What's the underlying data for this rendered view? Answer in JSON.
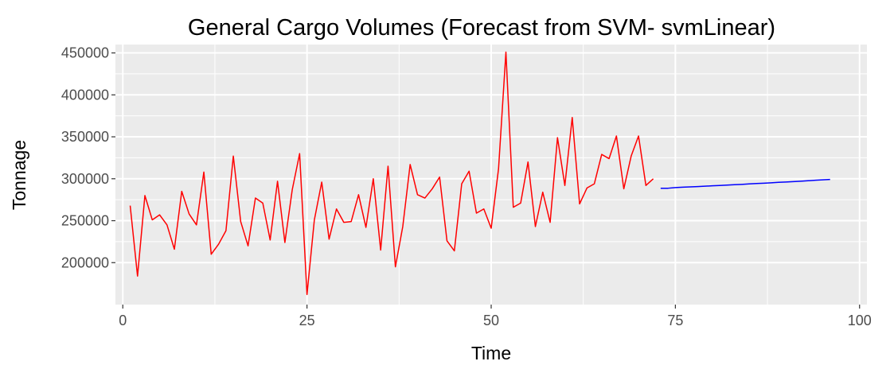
{
  "chart_data": {
    "type": "line",
    "title": "General Cargo Volumes (Forecast from SVM- svmLinear)",
    "xlabel": "Time",
    "ylabel": "Tonnage",
    "xlim": [
      -1,
      101
    ],
    "ylim": [
      150000,
      460000
    ],
    "x_ticks": [
      0,
      25,
      50,
      75,
      100
    ],
    "x_tick_labels": [
      "0",
      "25",
      "50",
      "75",
      "100"
    ],
    "y_ticks": [
      200000,
      250000,
      300000,
      350000,
      400000,
      450000
    ],
    "y_tick_labels": [
      "200000",
      "250000",
      "300000",
      "350000",
      "400000",
      "450000"
    ],
    "grid": true,
    "legend": "none",
    "series": [
      {
        "color": "#ff0000",
        "x": [
          1,
          2,
          3,
          4,
          5,
          6,
          7,
          8,
          9,
          10,
          11,
          12,
          13,
          14,
          15,
          16,
          17,
          18,
          19,
          20,
          21,
          22,
          23,
          24,
          25,
          26,
          27,
          28,
          29,
          30,
          31,
          32,
          33,
          34,
          35,
          36,
          37,
          38,
          39,
          40,
          41,
          42,
          43,
          44,
          45,
          46,
          47,
          48,
          49,
          50,
          51,
          52,
          53,
          54,
          55,
          56,
          57,
          58,
          59,
          60,
          61,
          62,
          63,
          64,
          65,
          66,
          67,
          68,
          69,
          70,
          71,
          72
        ],
        "y": [
          268000,
          184000,
          280000,
          251000,
          257000,
          245000,
          216000,
          285000,
          258000,
          245000,
          308000,
          210000,
          222000,
          238000,
          327000,
          249000,
          220000,
          277000,
          271000,
          227000,
          297000,
          224000,
          287000,
          330000,
          162000,
          251000,
          296000,
          228000,
          264000,
          248000,
          249000,
          281000,
          242000,
          300000,
          215000,
          315000,
          195000,
          243000,
          317000,
          281000,
          277000,
          288000,
          302000,
          226000,
          214000,
          294000,
          309000,
          259000,
          264000,
          241000,
          312000,
          451000,
          266000,
          271000,
          320000,
          243000,
          284000,
          248000,
          349000,
          292000,
          373000,
          270000,
          289000,
          294000,
          329000,
          324000,
          351000,
          288000,
          327000,
          351000,
          292000,
          300000
        ]
      },
      {
        "color": "#0000ff",
        "x": [
          73,
          74,
          75,
          76,
          77,
          78,
          79,
          80,
          81,
          82,
          83,
          84,
          85,
          86,
          87,
          88,
          89,
          90,
          91,
          92,
          93,
          94,
          95,
          96
        ],
        "y": [
          288600,
          288700,
          289500,
          289900,
          290300,
          290700,
          291100,
          291600,
          292000,
          292400,
          292900,
          293300,
          293800,
          294300,
          294700,
          295200,
          295700,
          296100,
          296600,
          297100,
          297600,
          298200,
          298700,
          299200
        ]
      }
    ]
  },
  "colors": {
    "panel_background": "#ebebeb",
    "grid_major": "#ffffff",
    "tick_text": "#4d4d4d"
  }
}
